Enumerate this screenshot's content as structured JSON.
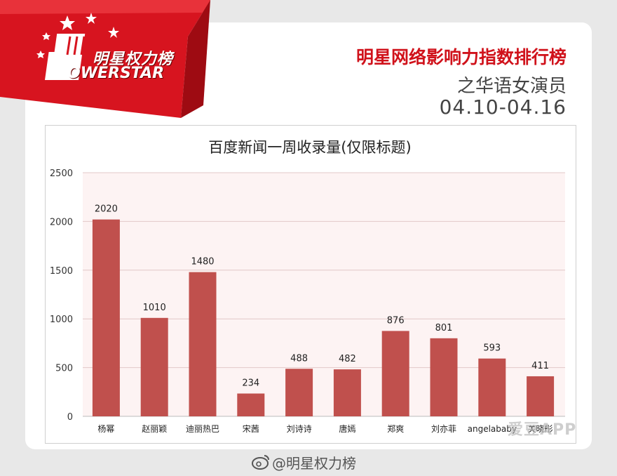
{
  "logo": {
    "line1": "明星权力榜",
    "line2": "OWERSTAR"
  },
  "header": {
    "title": "明星网络影响力指数排行榜",
    "subtitle": "之华语女演员",
    "date_range": "04.10-04.16"
  },
  "footer": {
    "handle": "@明星权力榜"
  },
  "watermark": "爱豆APP",
  "colors": {
    "bar": "#c0504d",
    "accent": "#d0121b",
    "plot_bg": "#fdf3f3"
  },
  "chart_data": {
    "type": "bar",
    "title": "百度新闻一周收录量(仅限标题)",
    "categories": [
      "杨幂",
      "赵丽颖",
      "迪丽热巴",
      "宋茜",
      "刘诗诗",
      "唐嫣",
      "郑爽",
      "刘亦菲",
      "angelababy",
      "关晓彤"
    ],
    "values": [
      2020,
      1010,
      1480,
      234,
      488,
      482,
      876,
      801,
      593,
      411
    ],
    "ylim": [
      0,
      2500
    ],
    "yticks": [
      0,
      500,
      1000,
      1500,
      2000,
      2500
    ],
    "grid": true,
    "data_labels": true
  }
}
